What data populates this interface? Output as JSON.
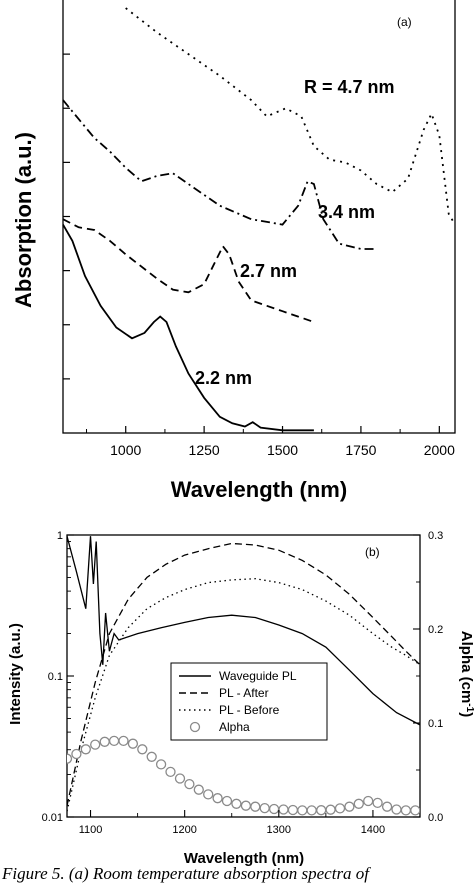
{
  "chart_data": [
    {
      "type": "line",
      "panel_label": "(a)",
      "xlabel": "Wavelength (nm)",
      "ylabel": "Absorption (a.u.)",
      "xlim": [
        800,
        2050
      ],
      "ylim": [
        0,
        8
      ],
      "x_ticks": [
        1000,
        1250,
        1500,
        1750,
        2000
      ],
      "x_tick_labels": [
        "1000",
        "1250",
        "1500",
        "1750",
        "2000"
      ],
      "y_tick_labels_shown": false,
      "series": [
        {
          "name": "R = 4.7 nm",
          "line_style": "dotted",
          "x": [
            1000,
            1100,
            1200,
            1300,
            1400,
            1450,
            1510,
            1560,
            1600,
            1650,
            1700,
            1750,
            1800,
            1850,
            1900,
            1950,
            1975,
            2000,
            2030,
            2050
          ],
          "y": [
            7.85,
            7.4,
            7.0,
            6.6,
            6.15,
            5.85,
            6.0,
            5.85,
            5.3,
            5.05,
            5.0,
            4.85,
            4.6,
            4.45,
            4.7,
            5.6,
            5.9,
            5.5,
            4.05,
            3.85
          ]
        },
        {
          "name": "3.4 nm",
          "line_style": "dash-dot",
          "x": [
            800,
            850,
            900,
            950,
            1000,
            1050,
            1100,
            1150,
            1200,
            1300,
            1400,
            1500,
            1550,
            1580,
            1600,
            1630,
            1680,
            1750,
            1800
          ],
          "y": [
            6.15,
            5.8,
            5.45,
            5.2,
            4.9,
            4.65,
            4.75,
            4.8,
            4.6,
            4.2,
            3.95,
            3.85,
            4.2,
            4.65,
            4.6,
            3.95,
            3.5,
            3.4,
            3.4
          ]
        },
        {
          "name": "2.7 nm",
          "line_style": "dashed",
          "x": [
            800,
            850,
            900,
            950,
            1000,
            1100,
            1150,
            1200,
            1250,
            1280,
            1310,
            1330,
            1360,
            1400,
            1450,
            1500,
            1550,
            1600
          ],
          "y": [
            3.95,
            3.8,
            3.75,
            3.55,
            3.3,
            2.85,
            2.65,
            2.6,
            2.75,
            3.1,
            3.45,
            3.3,
            2.8,
            2.45,
            2.35,
            2.25,
            2.15,
            2.05
          ]
        },
        {
          "name": "2.2 nm",
          "line_style": "solid",
          "x": [
            800,
            830,
            870,
            920,
            970,
            1020,
            1060,
            1090,
            1110,
            1130,
            1160,
            1200,
            1250,
            1300,
            1340,
            1380,
            1405,
            1430,
            1500,
            1600
          ],
          "y": [
            3.85,
            3.55,
            2.9,
            2.35,
            1.95,
            1.75,
            1.85,
            2.05,
            2.15,
            2.05,
            1.6,
            1.1,
            0.65,
            0.3,
            0.18,
            0.12,
            0.2,
            0.1,
            0.05,
            0.05
          ]
        }
      ],
      "annotations": [
        "R = 4.7 nm",
        "3.4 nm",
        "2.7 nm",
        "2.2 nm"
      ]
    },
    {
      "type": "line",
      "panel_label": "(b)",
      "xlabel": "Wavelength (nm)",
      "ylabel": "Intensity (a.u.)",
      "y2label": "Alpha (cm",
      "y2label_sup": "-1",
      "y2label_close": ")",
      "xlim": [
        1075,
        1450
      ],
      "ylim": [
        0.01,
        1
      ],
      "y_scale": "log",
      "y_ticks": [
        0.01,
        0.1,
        1
      ],
      "y_tick_labels": [
        "0.01",
        "0.1",
        "1"
      ],
      "y2lim": [
        0,
        0.3
      ],
      "y2_ticks": [
        0,
        0.1,
        0.2,
        0.3
      ],
      "y2_tick_labels": [
        "0.0",
        "0.1",
        "0.2",
        "0.3"
      ],
      "x_ticks": [
        1100,
        1200,
        1300,
        1400
      ],
      "x_tick_labels": [
        "1100",
        "1200",
        "1300",
        "1400"
      ],
      "legend_position": "center",
      "series": [
        {
          "name": "Waveguide PL",
          "line_style": "solid",
          "axis": "left",
          "x": [
            1075,
            1085,
            1095,
            1100,
            1103,
            1106,
            1110,
            1113,
            1116,
            1120,
            1125,
            1130,
            1150,
            1175,
            1200,
            1225,
            1250,
            1275,
            1300,
            1325,
            1350,
            1375,
            1400,
            1425,
            1450
          ],
          "y": [
            0.98,
            0.55,
            0.3,
            0.98,
            0.45,
            0.9,
            0.2,
            0.12,
            0.28,
            0.15,
            0.2,
            0.18,
            0.2,
            0.22,
            0.24,
            0.26,
            0.27,
            0.26,
            0.23,
            0.2,
            0.16,
            0.11,
            0.075,
            0.055,
            0.045
          ]
        },
        {
          "name": "PL - After",
          "line_style": "dashed",
          "axis": "left",
          "x": [
            1075,
            1090,
            1105,
            1120,
            1140,
            1160,
            1180,
            1200,
            1225,
            1250,
            1275,
            1300,
            1325,
            1350,
            1375,
            1400,
            1420,
            1435,
            1450
          ],
          "y": [
            0.012,
            0.035,
            0.09,
            0.2,
            0.35,
            0.5,
            0.62,
            0.72,
            0.8,
            0.87,
            0.85,
            0.78,
            0.66,
            0.52,
            0.38,
            0.26,
            0.19,
            0.15,
            0.12
          ]
        },
        {
          "name": "PL - Before",
          "line_style": "dotted",
          "axis": "left",
          "x": [
            1075,
            1090,
            1105,
            1120,
            1140,
            1160,
            1180,
            1200,
            1225,
            1250,
            1275,
            1300,
            1325,
            1350,
            1375,
            1400,
            1420,
            1435,
            1450
          ],
          "y": [
            0.011,
            0.03,
            0.07,
            0.14,
            0.22,
            0.3,
            0.36,
            0.41,
            0.46,
            0.48,
            0.49,
            0.46,
            0.41,
            0.34,
            0.27,
            0.2,
            0.16,
            0.14,
            0.12
          ]
        },
        {
          "name": "Alpha",
          "line_style": "circles",
          "axis": "right",
          "x": [
            1075,
            1085,
            1095,
            1105,
            1115,
            1125,
            1135,
            1145,
            1155,
            1165,
            1175,
            1185,
            1195,
            1205,
            1215,
            1225,
            1235,
            1245,
            1255,
            1265,
            1275,
            1285,
            1295,
            1305,
            1315,
            1325,
            1335,
            1345,
            1355,
            1365,
            1375,
            1385,
            1395,
            1405,
            1415,
            1425,
            1435,
            1445
          ],
          "y": [
            0.062,
            0.067,
            0.072,
            0.077,
            0.08,
            0.081,
            0.081,
            0.078,
            0.072,
            0.064,
            0.056,
            0.048,
            0.041,
            0.035,
            0.029,
            0.024,
            0.02,
            0.017,
            0.014,
            0.012,
            0.011,
            0.0095,
            0.0085,
            0.008,
            0.0075,
            0.007,
            0.007,
            0.0072,
            0.0078,
            0.0092,
            0.011,
            0.014,
            0.017,
            0.015,
            0.011,
            0.008,
            0.007,
            0.007
          ]
        }
      ]
    }
  ],
  "caption": "Figure 5. (a) Room temperature absorption spectra of"
}
